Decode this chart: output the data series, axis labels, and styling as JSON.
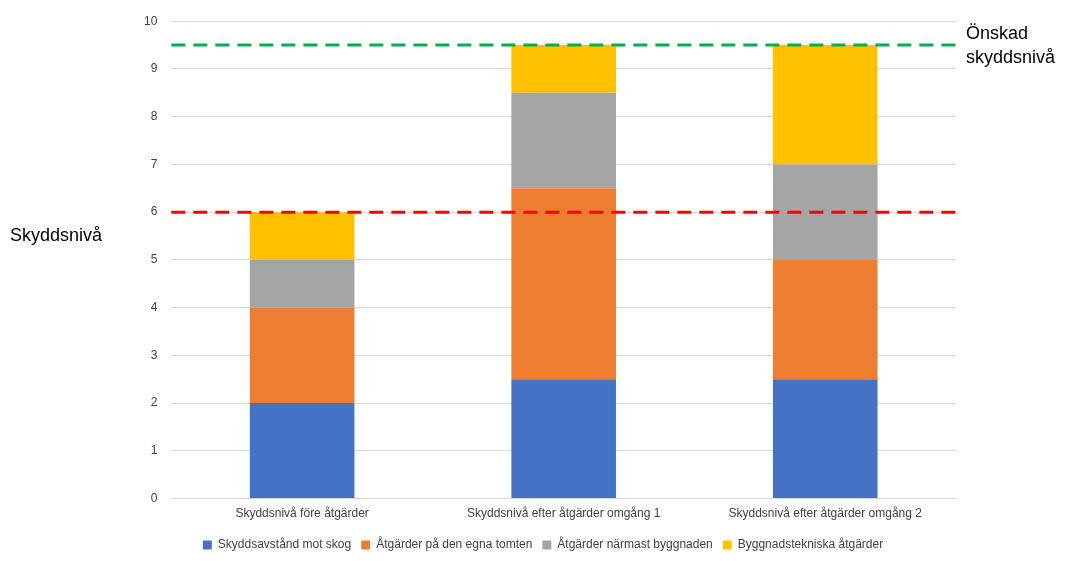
{
  "chart_data": {
    "type": "bar",
    "stacked": true,
    "ylabel": "Skyddsnivå",
    "categories": [
      "Skyddsnivå före åtgärder",
      "Skyddsnivå efter åtgärder omgång 1",
      "Skyddsnivå efter åtgärder omgång 2"
    ],
    "series": [
      {
        "name": "Skyddsavstånd mot skog",
        "color": "#4472c4",
        "values": [
          2,
          2.5,
          2.5
        ]
      },
      {
        "name": "Åtgärder på den egna tomten",
        "color": "#ed7d31",
        "values": [
          2,
          4,
          2.5
        ]
      },
      {
        "name": "Åtgärder närmast byggnaden",
        "color": "#a5a5a5",
        "values": [
          1,
          2,
          2
        ]
      },
      {
        "name": "Byggnadstekniska åtgärder",
        "color": "#ffc000",
        "values": [
          1,
          1,
          2.5
        ]
      }
    ],
    "ylim": [
      0,
      10
    ],
    "yticks": [
      0,
      1,
      2,
      3,
      4,
      5,
      6,
      7,
      8,
      9,
      10
    ],
    "grid": "y",
    "legend": "bottom",
    "ref_lines": [
      {
        "axis": "y",
        "value": 6,
        "color": "#ff0000",
        "line_style": "dashed"
      },
      {
        "axis": "y",
        "value": 9.5,
        "label": "Önskad skyddsnivå",
        "color": "#00b050",
        "line_style": "dashed"
      }
    ]
  }
}
